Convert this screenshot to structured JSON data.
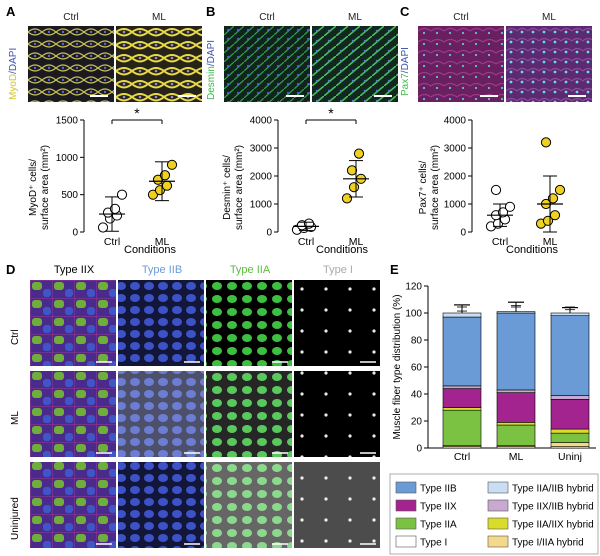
{
  "panels": {
    "A": {
      "letter": "A",
      "ctrl": "Ctrl",
      "ml": "ML",
      "stain_a": "MyoD",
      "stain_b": "/DAPI",
      "ylabel_1": "MyoD⁺ cells/",
      "ylabel_2": "surface area (mm²)",
      "xlabel": "Conditions",
      "sig": "*"
    },
    "B": {
      "letter": "B",
      "ctrl": "Ctrl",
      "ml": "ML",
      "stain_a": "Desmin",
      "stain_b": "/DAPI",
      "ylabel_1": "Desmin⁺ cells/",
      "ylabel_2": "surface area (mm²)",
      "xlabel": "Conditions",
      "sig": "*"
    },
    "C": {
      "letter": "C",
      "ctrl": "Ctrl",
      "ml": "ML",
      "stain_a": "Pax7",
      "stain_b": "/DAPI",
      "ylabel_1": "Pax7⁺ cells/",
      "ylabel_2": "surface area (mm²)",
      "xlabel": "Conditions"
    },
    "D": {
      "letter": "D",
      "cols": [
        "Type IIX",
        "Type IIB",
        "Type IIA",
        "Type I"
      ],
      "rows": [
        "Ctrl",
        "ML",
        "Uninjured"
      ]
    },
    "E": {
      "letter": "E"
    }
  },
  "colors": {
    "type_iib": "#6b9bd6",
    "type_iia_iib": "#c9def2",
    "type_iix": "#a3238f",
    "type_iix_iib": "#c7a9d2",
    "type_iia": "#7cc242",
    "type_iia_iix": "#d9dc2a",
    "type_i": "#ffffff",
    "type_i_iia": "#f5d98a",
    "ml_dot": "#f0d020"
  },
  "chart_data": [
    {
      "id": "A",
      "type": "scatter",
      "categories": [
        "Ctrl",
        "ML"
      ],
      "yticks": [
        0,
        500,
        1000,
        1500
      ],
      "ylim": [
        0,
        1500
      ],
      "ylabel": "MyoD⁺ cells/ surface area (mm²)",
      "xlabel": "Conditions",
      "series": [
        {
          "name": "Ctrl",
          "values": [
            60,
            180,
            220,
            260,
            310,
            500
          ],
          "mean": 240,
          "err": 230
        },
        {
          "name": "ML",
          "values": [
            500,
            560,
            620,
            700,
            760,
            900
          ],
          "mean": 680,
          "err": 260
        }
      ]
    },
    {
      "id": "B",
      "type": "scatter",
      "categories": [
        "Ctrl",
        "ML"
      ],
      "yticks": [
        0,
        1000,
        2000,
        3000,
        4000
      ],
      "ylim": [
        0,
        4000
      ],
      "ylabel": "Desmin⁺ cells/ surface area (mm²)",
      "xlabel": "Conditions",
      "series": [
        {
          "name": "Ctrl",
          "values": [
            80,
            140,
            180,
            240,
            300
          ],
          "mean": 200,
          "err": 150
        },
        {
          "name": "ML",
          "values": [
            1200,
            1600,
            1900,
            2200,
            2800
          ],
          "mean": 1900,
          "err": 650
        }
      ]
    },
    {
      "id": "C",
      "type": "scatter",
      "categories": [
        "Ctrl",
        "ML"
      ],
      "yticks": [
        0,
        1000,
        2000,
        3000,
        4000
      ],
      "ylim": [
        0,
        4000
      ],
      "ylabel": "Pax7⁺ cells/ surface area (mm²)",
      "xlabel": "Conditions",
      "series": [
        {
          "name": "Ctrl",
          "values": [
            200,
            300,
            450,
            600,
            700,
            900,
            1500
          ],
          "mean": 600,
          "err": 400
        },
        {
          "name": "ML",
          "values": [
            300,
            400,
            600,
            1000,
            1200,
            1500,
            3200
          ],
          "mean": 1000,
          "err": 1000
        }
      ]
    },
    {
      "id": "E",
      "type": "bar",
      "stacked": true,
      "categories": [
        "Ctrl",
        "ML",
        "Uninj"
      ],
      "yticks": [
        0,
        20,
        40,
        60,
        80,
        100,
        120
      ],
      "ylim": [
        0,
        120
      ],
      "ylabel": "Muscle fiber type distribution (%)",
      "series": [
        {
          "name": "Type I",
          "values": [
            1,
            1,
            1
          ]
        },
        {
          "name": "Type I/IIA hybrid",
          "values": [
            1,
            1,
            3
          ]
        },
        {
          "name": "Type IIA",
          "values": [
            26,
            15,
            7
          ]
        },
        {
          "name": "Type IIA/IIX hybrid",
          "values": [
            2,
            2,
            3
          ]
        },
        {
          "name": "Type IIX",
          "values": [
            14,
            22,
            22
          ]
        },
        {
          "name": "Type IIX/IIB hybrid",
          "values": [
            2,
            2,
            3
          ]
        },
        {
          "name": "Type IIB",
          "values": [
            51,
            57,
            59
          ]
        },
        {
          "name": "Type IIA/IIB hybrid",
          "values": [
            3,
            1,
            2
          ]
        }
      ],
      "errors": [
        6,
        7,
        4
      ],
      "legend": [
        "Type IIB",
        "Type IIA/IIB hybrid",
        "Type IIX",
        "Type IIX/IIB hybrid",
        "Type IIA",
        "Type IIA/IIX hybrid",
        "Type I",
        "Type I/IIA hybrid"
      ]
    }
  ]
}
